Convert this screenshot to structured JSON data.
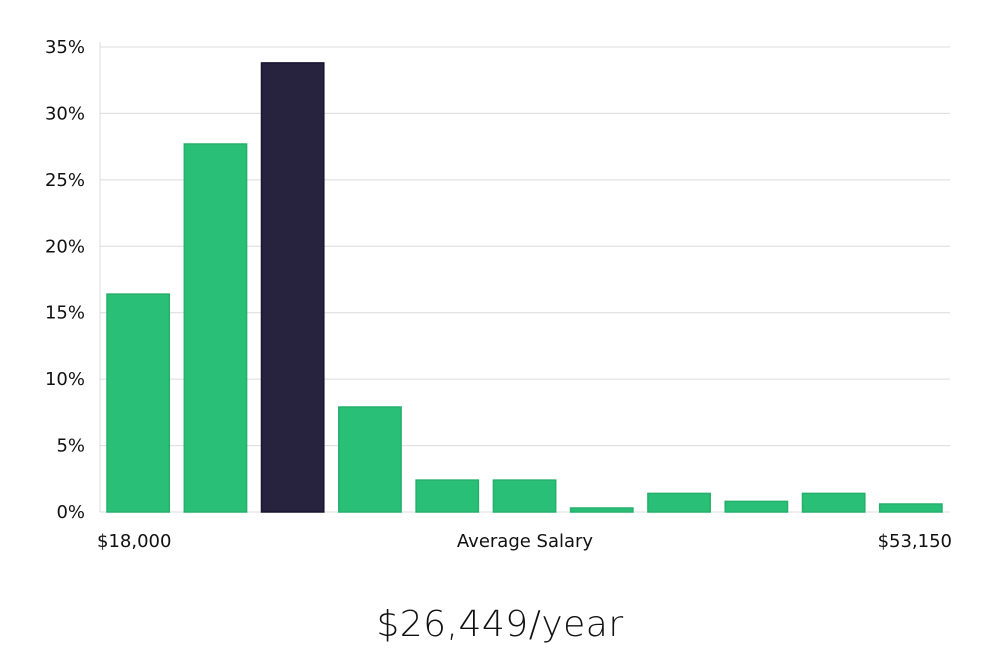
{
  "chart_data": {
    "type": "bar",
    "values": [
      16.4,
      27.7,
      33.8,
      7.9,
      2.4,
      2.4,
      0.3,
      1.4,
      0.8,
      1.4,
      0.6
    ],
    "highlight_index": 2,
    "y_ticks": [
      "0%",
      "5%",
      "10%",
      "15%",
      "20%",
      "25%",
      "30%",
      "35%"
    ],
    "ylim": [
      0,
      35
    ],
    "x_start_label": "$18,000",
    "x_end_label": "$53,150",
    "xlabel": "Average Salary",
    "grid": true,
    "colors": {
      "bar": "#2abf77",
      "bar_border": "#24b06b",
      "highlight": "#27233f",
      "highlight_border": "#191531",
      "grid": "#dcdcdc"
    }
  },
  "summary": {
    "salary": "$26,449/year"
  }
}
